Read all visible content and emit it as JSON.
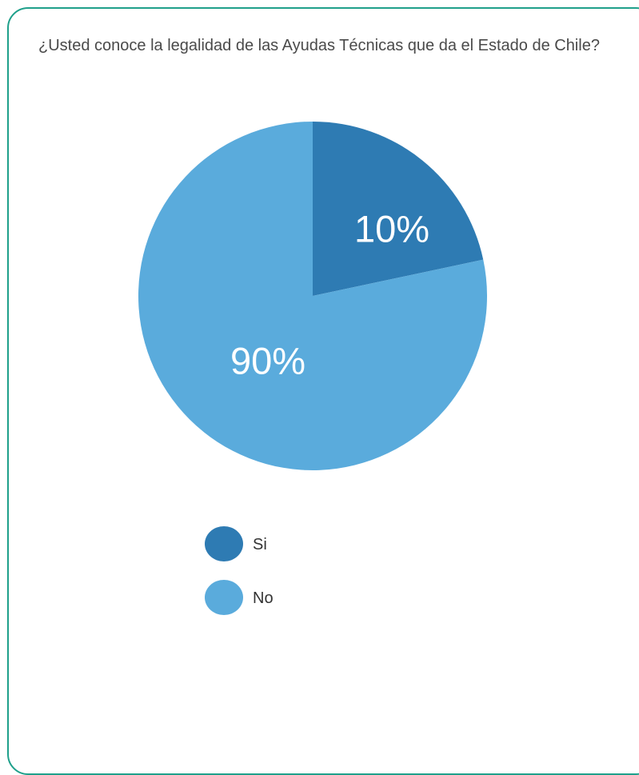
{
  "question": "¿Usted conoce la legalidad de las Ayudas Técnicas que da el Estado de Chile?",
  "chart_data": {
    "type": "pie",
    "categories": [
      "Si",
      "No"
    ],
    "values": [
      10,
      90
    ],
    "labels": [
      "10%",
      "90%"
    ],
    "colors": [
      "#2e7bb3",
      "#5aabdc"
    ],
    "legend_position": "bottom"
  }
}
